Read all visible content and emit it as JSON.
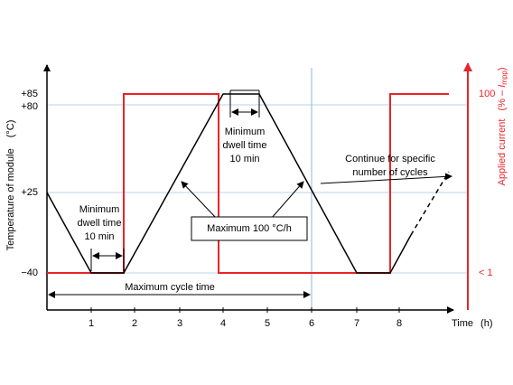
{
  "left_axis": {
    "label": "Temperature of module",
    "unit": "(°C)",
    "ticks": [
      "+85",
      "+80",
      "+25",
      "−40"
    ]
  },
  "right_axis": {
    "label": "Applied current",
    "unit_open": "(% – ",
    "unit_symbol": "I",
    "unit_subscript": "mpp",
    "unit_close": ")",
    "ticks": [
      "100",
      "< 1"
    ]
  },
  "x_axis": {
    "label": "Time",
    "unit": "(h)",
    "ticks": [
      "1",
      "2",
      "3",
      "4",
      "5",
      "6",
      "7",
      "8"
    ]
  },
  "annotations": {
    "dwell_lower": [
      "Minimum",
      "dwell time",
      "10 min"
    ],
    "dwell_upper": [
      "Minimum",
      "dwell time",
      "10 min"
    ],
    "ramp": "Maximum 100 °C/h",
    "continue": [
      "Continue for specific",
      "number of cycles"
    ],
    "cycle": "Maximum cycle time"
  }
}
